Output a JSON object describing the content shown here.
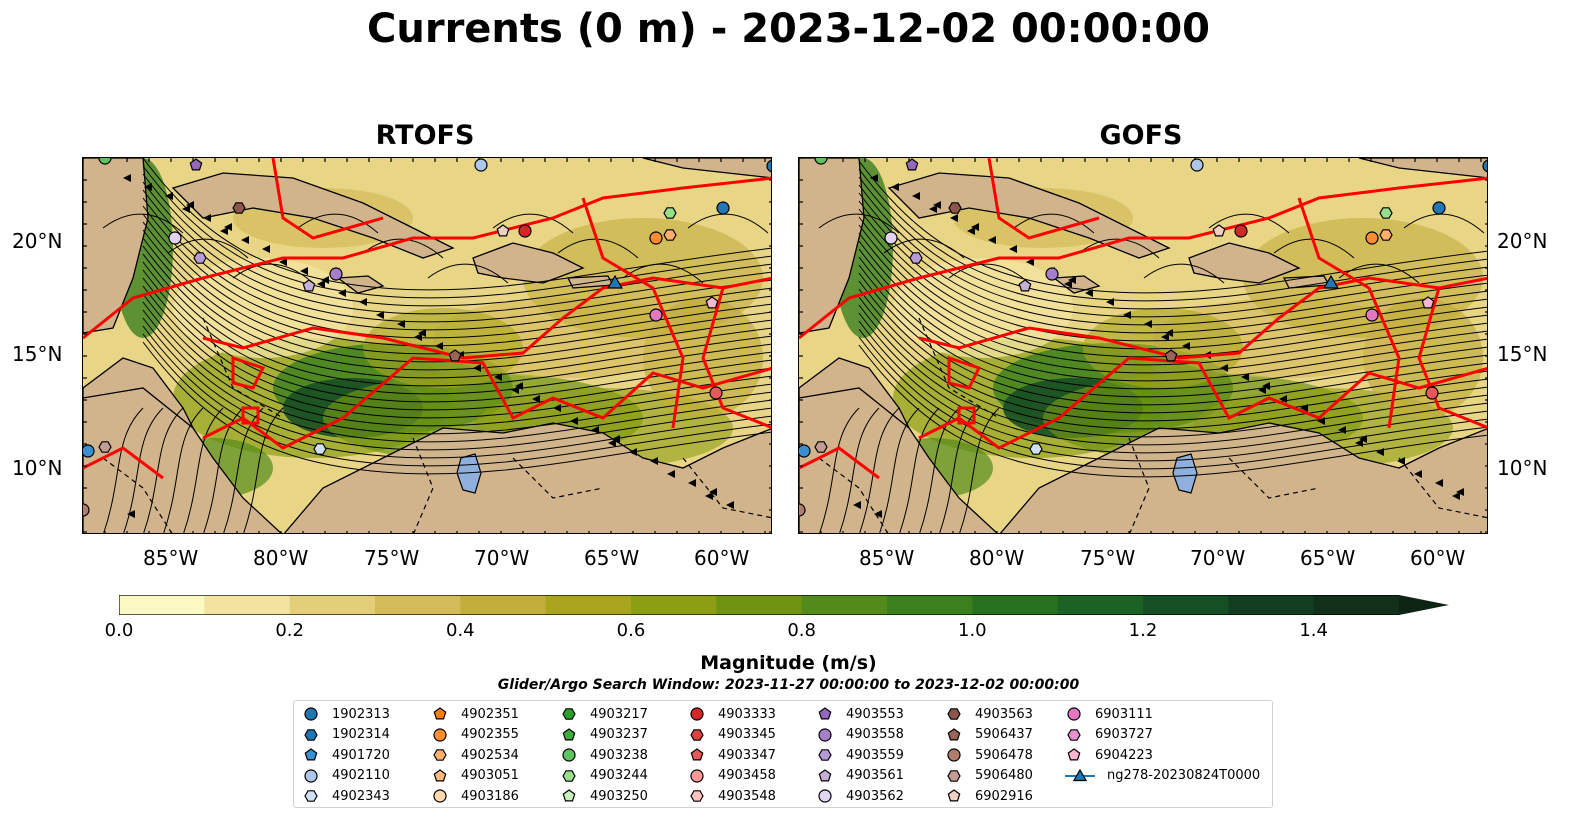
{
  "title": "Currents (0 m) - 2023-12-02 00:00:00",
  "panels": [
    {
      "title": "RTOFS"
    },
    {
      "title": "GOFS"
    }
  ],
  "lat_ticks": [
    "20°N",
    "15°N",
    "10°N"
  ],
  "lon_ticks": [
    "85°W",
    "80°W",
    "75°W",
    "70°W",
    "65°W",
    "60°W"
  ],
  "colorbar": {
    "label": "Magnitude (m/s)",
    "ticks": [
      "0.0",
      "0.2",
      "0.4",
      "0.6",
      "0.8",
      "1.0",
      "1.2",
      "1.4"
    ],
    "range": [
      0,
      1.5
    ],
    "colors": [
      "#fdf9c4",
      "#f2e4a0",
      "#e3cf7a",
      "#d4bb5a",
      "#c2ae3c",
      "#a9a51f",
      "#8c9e14",
      "#6f9414",
      "#538a19",
      "#3b7f1e",
      "#27711f",
      "#1b6224",
      "#164f24",
      "#123e1f",
      "#10301a",
      "#0d2414"
    ]
  },
  "search_window": "Glider/Argo Search Window: 2023-11-27 00:00:00 to 2023-12-02 00:00:00",
  "legend": [
    [
      {
        "id": "1902313",
        "color": "#1f77b4",
        "marker": "circle"
      },
      {
        "id": "1902314",
        "color": "#1f77b4",
        "marker": "hexagon"
      },
      {
        "id": "4901720",
        "color": "#3a8fd0",
        "marker": "pentagon"
      },
      {
        "id": "4902110",
        "color": "#aec7e8",
        "marker": "circle"
      },
      {
        "id": "4902343",
        "color": "#cfe0f3",
        "marker": "hexagon"
      }
    ],
    [
      {
        "id": "4902351",
        "color": "#ff7f0e",
        "marker": "pentagon"
      },
      {
        "id": "4902355",
        "color": "#ff8c2e",
        "marker": "circle"
      },
      {
        "id": "4902534",
        "color": "#ffae6b",
        "marker": "hexagon"
      },
      {
        "id": "4903051",
        "color": "#ffbb78",
        "marker": "pentagon"
      },
      {
        "id": "4903186",
        "color": "#ffd7b0",
        "marker": "circle"
      }
    ],
    [
      {
        "id": "4903217",
        "color": "#2ca02c",
        "marker": "hexagon"
      },
      {
        "id": "4903237",
        "color": "#3cae3c",
        "marker": "pentagon"
      },
      {
        "id": "4903238",
        "color": "#5cc45c",
        "marker": "circle"
      },
      {
        "id": "4903244",
        "color": "#98df8a",
        "marker": "hexagon"
      },
      {
        "id": "4903250",
        "color": "#c8f0bd",
        "marker": "pentagon"
      }
    ],
    [
      {
        "id": "4903333",
        "color": "#d62728",
        "marker": "circle"
      },
      {
        "id": "4903345",
        "color": "#e04040",
        "marker": "hexagon"
      },
      {
        "id": "4903347",
        "color": "#e85858",
        "marker": "pentagon"
      },
      {
        "id": "4903458",
        "color": "#ff9896",
        "marker": "circle"
      },
      {
        "id": "4903548",
        "color": "#ffc4c2",
        "marker": "hexagon"
      }
    ],
    [
      {
        "id": "4903553",
        "color": "#9467bd",
        "marker": "pentagon"
      },
      {
        "id": "4903558",
        "color": "#a57fca",
        "marker": "circle"
      },
      {
        "id": "4903559",
        "color": "#b99ad8",
        "marker": "hexagon"
      },
      {
        "id": "4903561",
        "color": "#c5b0d5",
        "marker": "pentagon"
      },
      {
        "id": "4903562",
        "color": "#e2d3f0",
        "marker": "circle"
      }
    ],
    [
      {
        "id": "4903563",
        "color": "#8c564b",
        "marker": "hexagon"
      },
      {
        "id": "5906437",
        "color": "#9a6558",
        "marker": "pentagon"
      },
      {
        "id": "5906478",
        "color": "#b07c6c",
        "marker": "circle"
      },
      {
        "id": "5906480",
        "color": "#c49c94",
        "marker": "hexagon"
      },
      {
        "id": "6902916",
        "color": "#f0d0c4",
        "marker": "pentagon"
      }
    ],
    [
      {
        "id": "6903111",
        "color": "#e377c2",
        "marker": "circle"
      },
      {
        "id": "6903727",
        "color": "#ea8fd0",
        "marker": "hexagon"
      },
      {
        "id": "6904223",
        "color": "#f7b6d2",
        "marker": "pentagon"
      },
      {
        "id": "ng278-20230824T0000",
        "color": "#1f77b4",
        "marker": "glider"
      }
    ]
  ]
}
